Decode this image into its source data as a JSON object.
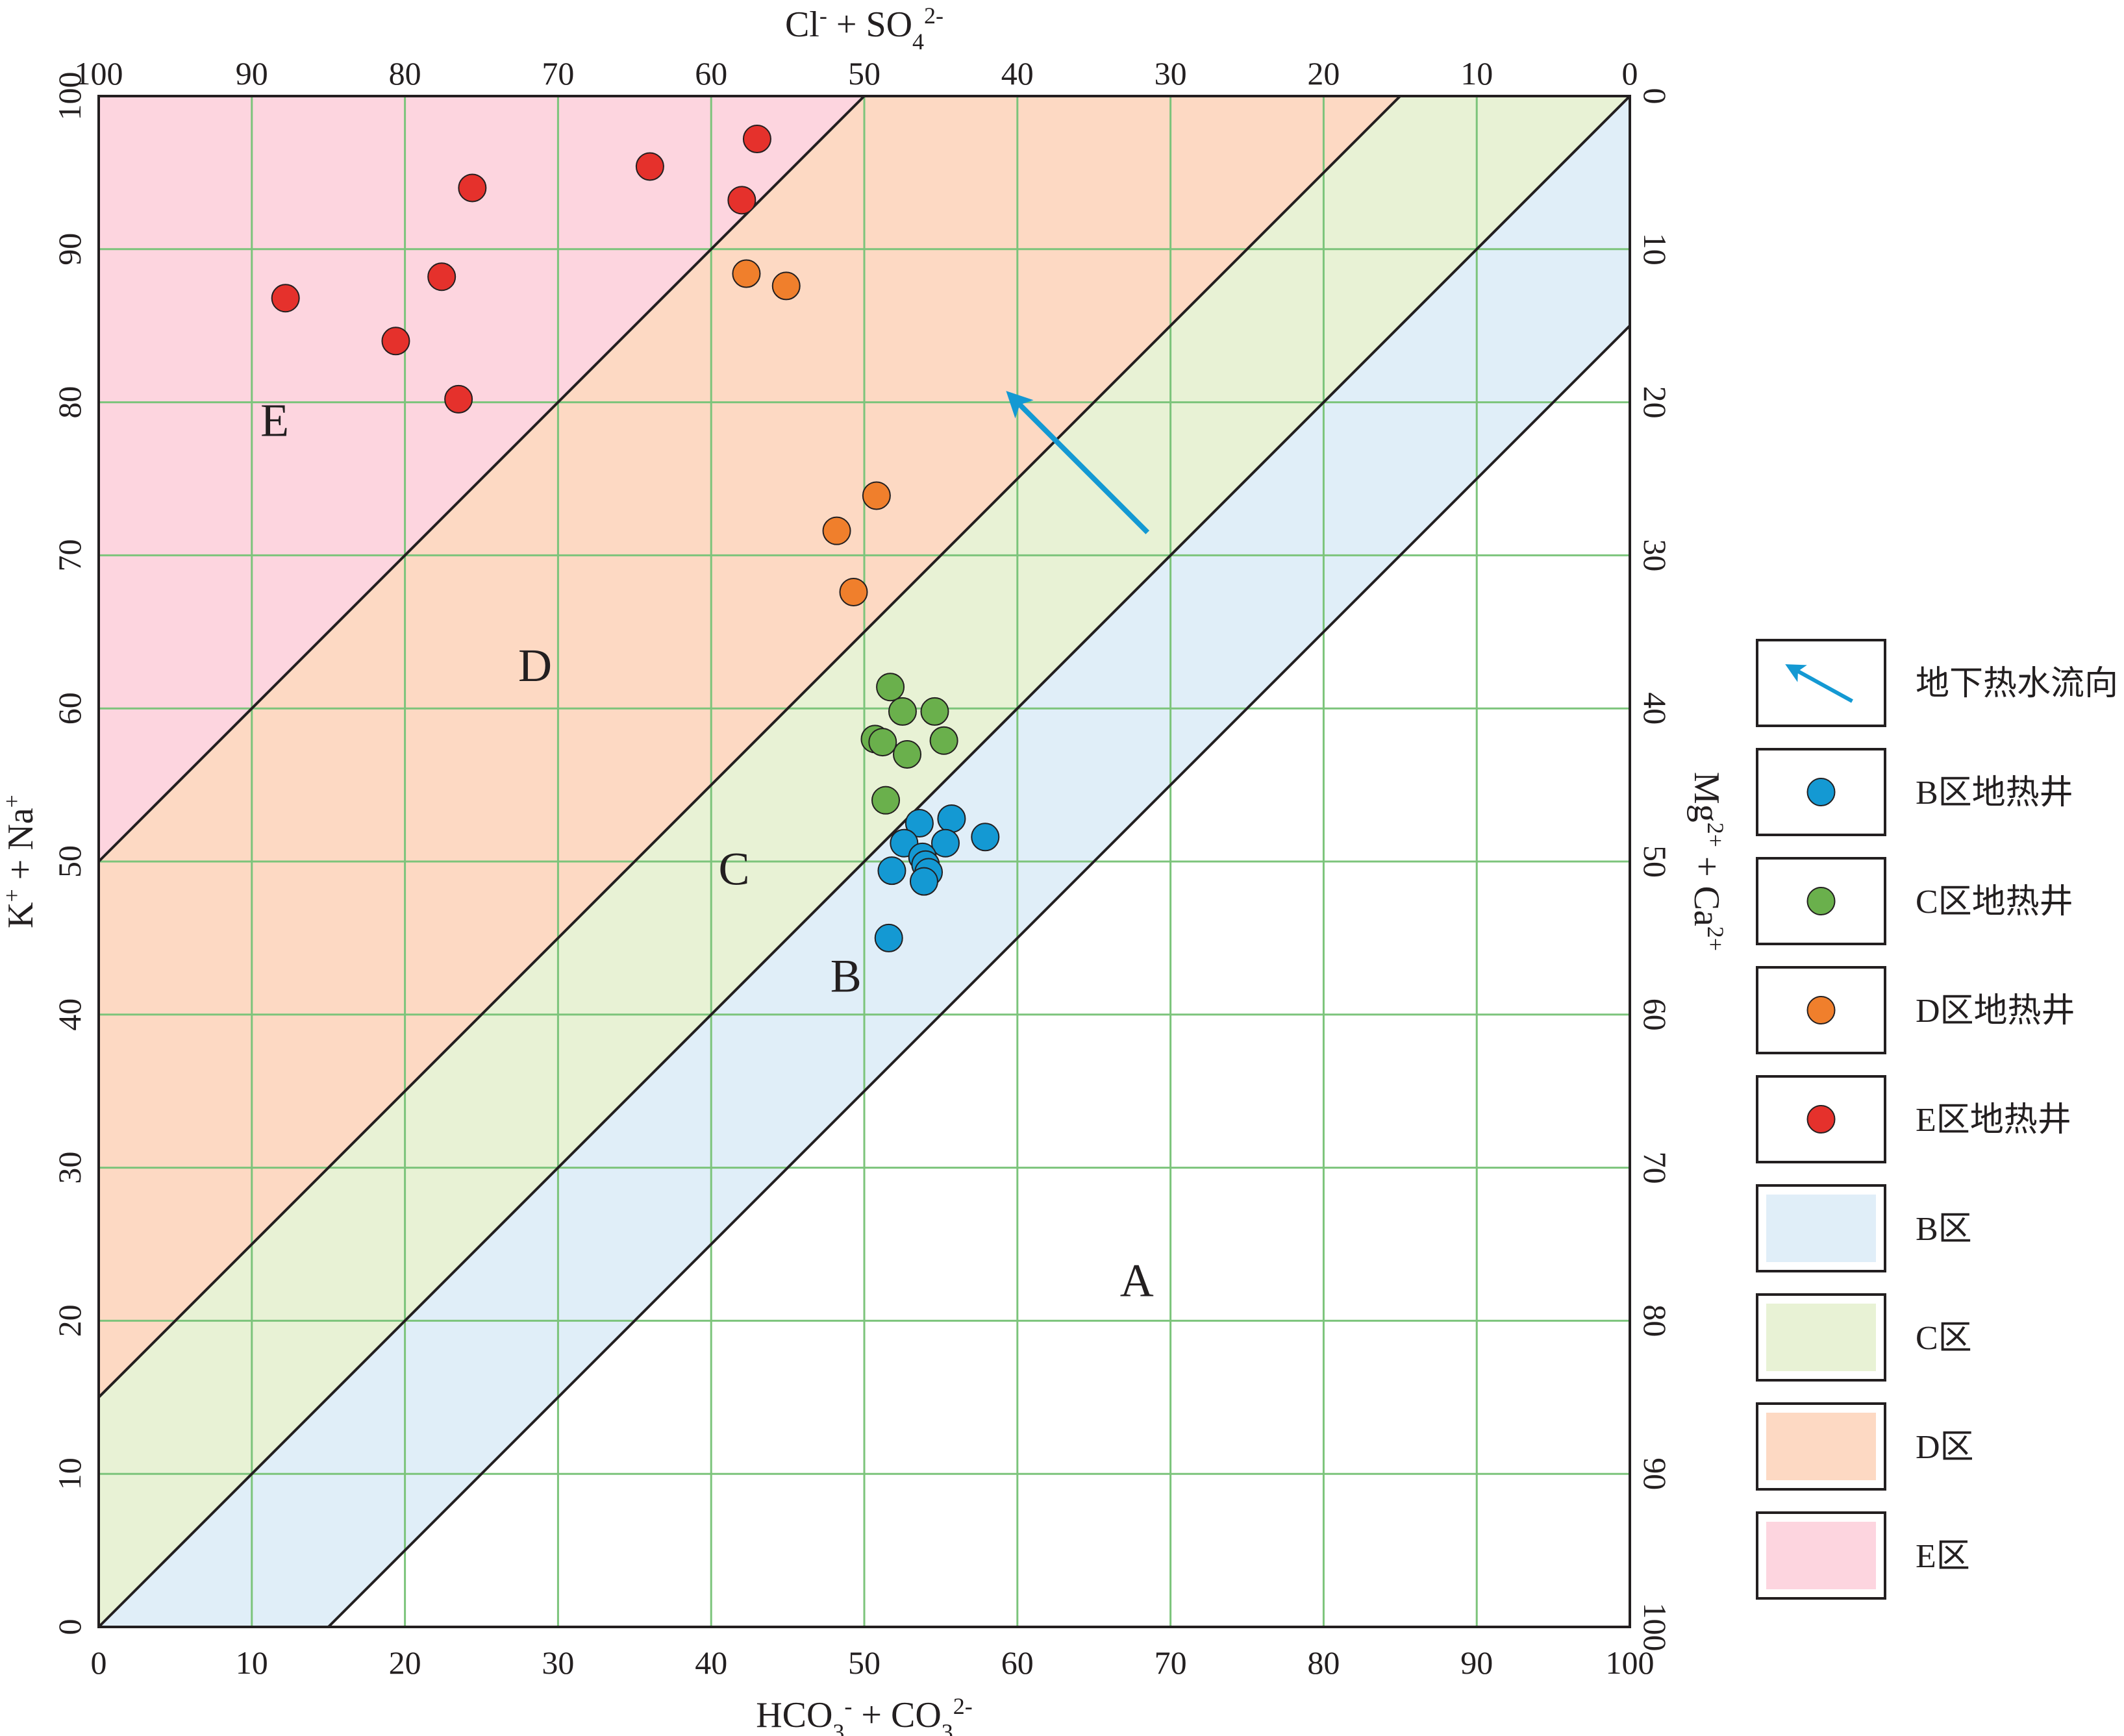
{
  "chart_data": {
    "type": "scatter",
    "title": "",
    "xlabel": "HCO3- + CO32-",
    "ylabel": "K+ + Na+",
    "top_label": "Cl- + SO42-",
    "right_label": "Mg2+ + Ca2+",
    "xlim": [
      0,
      100
    ],
    "ylim": [
      0,
      100
    ],
    "grid": true,
    "legend_position": "right",
    "bottom_ticks": [
      "0",
      "10",
      "20",
      "30",
      "40",
      "50",
      "60",
      "70",
      "80",
      "90",
      "100"
    ],
    "left_ticks": [
      "0",
      "10",
      "20",
      "30",
      "40",
      "50",
      "60",
      "70",
      "80",
      "90",
      "100"
    ],
    "top_ticks": [
      "100",
      "90",
      "80",
      "70",
      "60",
      "50",
      "40",
      "30",
      "20",
      "10",
      "0"
    ],
    "right_ticks": [
      "0",
      "10",
      "20",
      "30",
      "40",
      "50",
      "60",
      "70",
      "80",
      "90",
      "100"
    ],
    "zone_boundaries": [
      {
        "x0": 0,
        "y0": 50,
        "x1": 50,
        "y1": 100
      },
      {
        "x0": 0,
        "y0": 15,
        "x1": 85,
        "y1": 100
      },
      {
        "x0": 0,
        "y0": 0,
        "x1": 100,
        "y1": 100
      },
      {
        "x0": 15,
        "y0": 0,
        "x1": 100,
        "y1": 85
      }
    ],
    "zones": [
      {
        "name": "E",
        "label_x": 11.5,
        "label_y": 78.5,
        "color": "#fdd5df",
        "polygon": [
          [
            0,
            50
          ],
          [
            0,
            100
          ],
          [
            50,
            100
          ]
        ]
      },
      {
        "name": "D",
        "label_x": 28.5,
        "label_y": 62.5,
        "color": "#fdd9c3",
        "polygon": [
          [
            0,
            15
          ],
          [
            0,
            50
          ],
          [
            50,
            100
          ],
          [
            85,
            100
          ]
        ]
      },
      {
        "name": "C",
        "label_x": 41.5,
        "label_y": 49.2,
        "color": "#e8f2d5",
        "polygon": [
          [
            0,
            0
          ],
          [
            0,
            15
          ],
          [
            85,
            100
          ],
          [
            100,
            100
          ]
        ]
      },
      {
        "name": "B",
        "label_x": 48.8,
        "label_y": 42.2,
        "color": "#e0eef8",
        "polygon": [
          [
            0,
            0
          ],
          [
            100,
            100
          ],
          [
            100,
            85
          ],
          [
            15,
            0
          ]
        ]
      },
      {
        "name": "A",
        "label_x": 67.8,
        "label_y": 22.3,
        "color": "#ffffff",
        "polygon": [
          [
            15,
            0
          ],
          [
            100,
            85
          ],
          [
            100,
            0
          ]
        ]
      }
    ],
    "flow_arrow": {
      "from": [
        68.5,
        71.5
      ],
      "to": [
        59.5,
        80.5
      ],
      "color": "#1499d3"
    },
    "series": [
      {
        "name": "E区地热井",
        "color": "#e5312c",
        "points": [
          [
            12.2,
            86.8
          ],
          [
            19.4,
            84.0
          ],
          [
            22.4,
            88.2
          ],
          [
            23.5,
            80.2
          ],
          [
            24.4,
            94.0
          ],
          [
            36.0,
            95.4
          ],
          [
            42.0,
            93.2
          ],
          [
            43.0,
            97.2
          ]
        ]
      },
      {
        "name": "D区地热井",
        "color": "#f07f2c",
        "points": [
          [
            42.3,
            88.4
          ],
          [
            44.9,
            87.6
          ],
          [
            48.2,
            71.6
          ],
          [
            50.8,
            73.9
          ],
          [
            49.3,
            67.6
          ]
        ]
      },
      {
        "name": "C区地热井",
        "color": "#6ab04c",
        "points": [
          [
            51.7,
            61.4
          ],
          [
            52.5,
            59.8
          ],
          [
            54.6,
            59.8
          ],
          [
            50.7,
            58.0
          ],
          [
            51.2,
            57.8
          ],
          [
            52.8,
            57.0
          ],
          [
            55.2,
            57.9
          ],
          [
            51.4,
            54.0
          ]
        ]
      },
      {
        "name": "B区地热井",
        "color": "#1499d3",
        "points": [
          [
            53.6,
            52.5
          ],
          [
            55.7,
            52.8
          ],
          [
            57.9,
            51.6
          ],
          [
            52.6,
            51.2
          ],
          [
            55.3,
            51.2
          ],
          [
            53.8,
            50.3
          ],
          [
            54.0,
            49.8
          ],
          [
            54.2,
            49.3
          ],
          [
            51.8,
            49.4
          ],
          [
            53.9,
            48.7
          ],
          [
            51.6,
            45.0
          ]
        ]
      }
    ]
  },
  "legend": {
    "items": [
      {
        "kind": "arrow",
        "label": "地下热水流向",
        "color": "#1499d3"
      },
      {
        "kind": "dot",
        "label": "B区地热井",
        "color": "#1499d3"
      },
      {
        "kind": "dot",
        "label": "C区地热井",
        "color": "#6ab04c"
      },
      {
        "kind": "dot",
        "label": "D区地热井",
        "color": "#f07f2c"
      },
      {
        "kind": "dot",
        "label": "E区地热井",
        "color": "#e5312c"
      },
      {
        "kind": "swatch",
        "label": "B区",
        "color": "#e0eef8"
      },
      {
        "kind": "swatch",
        "label": "C区",
        "color": "#e8f2d5"
      },
      {
        "kind": "swatch",
        "label": "D区",
        "color": "#fdd9c3"
      },
      {
        "kind": "swatch",
        "label": "E区",
        "color": "#fdd5df"
      }
    ]
  },
  "colors": {
    "grid": "#7cc47b",
    "axis": "#231f20",
    "point_stroke": "#231f20"
  }
}
